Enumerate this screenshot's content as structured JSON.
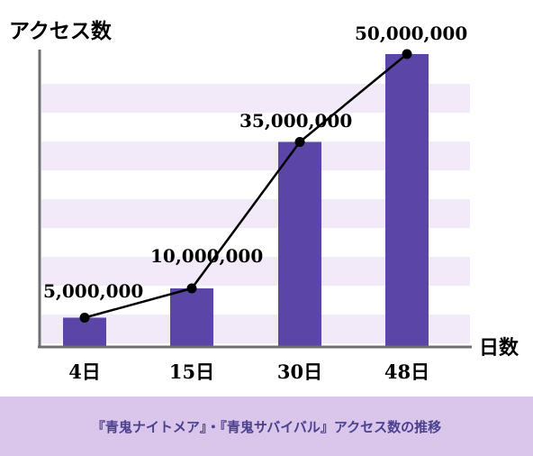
{
  "chart_data": {
    "type": "bar",
    "ylabel": "アクセス数",
    "xlabel": "日数",
    "categories": [
      "4日",
      "15日",
      "30日",
      "48日"
    ],
    "series": [
      {
        "values": [
          5000000,
          10000000,
          35000000,
          50000000
        ]
      }
    ],
    "data_labels": [
      "5,000,000",
      "10,000,000",
      "35,000,000",
      "50,000,000"
    ],
    "line_overlay": true,
    "ylim": [
      0,
      50000000
    ],
    "colors": {
      "bar": "#5b46a8",
      "band": "#f3eaf9",
      "line": "#000000",
      "marker": "#000000"
    }
  },
  "caption": "『青鬼ナイトメア』・『青鬼サバイバル』アクセス数の推移"
}
